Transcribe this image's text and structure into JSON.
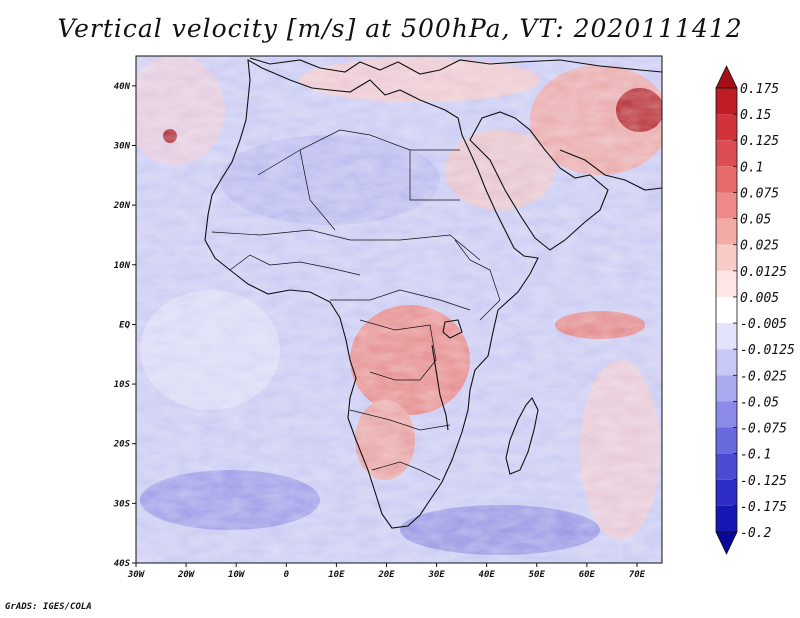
{
  "title": "Vertical velocity [m/s] at 500hPa, VT: 2020111412",
  "credit": "GrADS: IGES/COLA",
  "map": {
    "lon_range": [
      -30,
      75
    ],
    "lat_range": [
      -40,
      45
    ],
    "lat_ticks": [
      {
        "value": 40,
        "label": "40N"
      },
      {
        "value": 30,
        "label": "30N"
      },
      {
        "value": 20,
        "label": "20N"
      },
      {
        "value": 10,
        "label": "10N"
      },
      {
        "value": 0,
        "label": "EQ"
      },
      {
        "value": -10,
        "label": "10S"
      },
      {
        "value": -20,
        "label": "20S"
      },
      {
        "value": -30,
        "label": "30S"
      },
      {
        "value": -40,
        "label": "40S"
      }
    ],
    "lon_ticks": [
      {
        "value": -30,
        "label": "30W"
      },
      {
        "value": -20,
        "label": "20W"
      },
      {
        "value": -10,
        "label": "10W"
      },
      {
        "value": 0,
        "label": "0"
      },
      {
        "value": 10,
        "label": "10E"
      },
      {
        "value": 20,
        "label": "20E"
      },
      {
        "value": 30,
        "label": "30E"
      },
      {
        "value": 40,
        "label": "40E"
      },
      {
        "value": 50,
        "label": "50E"
      },
      {
        "value": 60,
        "label": "60E"
      },
      {
        "value": 70,
        "label": "70E"
      }
    ]
  },
  "colorbar": {
    "labels": [
      "0.175",
      "0.15",
      "0.125",
      "0.1",
      "0.075",
      "0.05",
      "0.025",
      "0.0125",
      "0.005",
      "-0.005",
      "-0.0125",
      "-0.025",
      "-0.05",
      "-0.075",
      "-0.1",
      "-0.125",
      "-0.175",
      "-0.2"
    ],
    "colors": [
      "#a50f15",
      "#bf1d25",
      "#d0333a",
      "#dc4e52",
      "#e66c6c",
      "#ee8b88",
      "#f4aba6",
      "#f9cbc7",
      "#fde6e3",
      "#ffffff",
      "#e3e3fb",
      "#c8c8f6",
      "#aaaaf0",
      "#8a8ae8",
      "#6a6adf",
      "#4b4bd4",
      "#2e2ec6",
      "#1616b4",
      "#08089a"
    ]
  }
}
